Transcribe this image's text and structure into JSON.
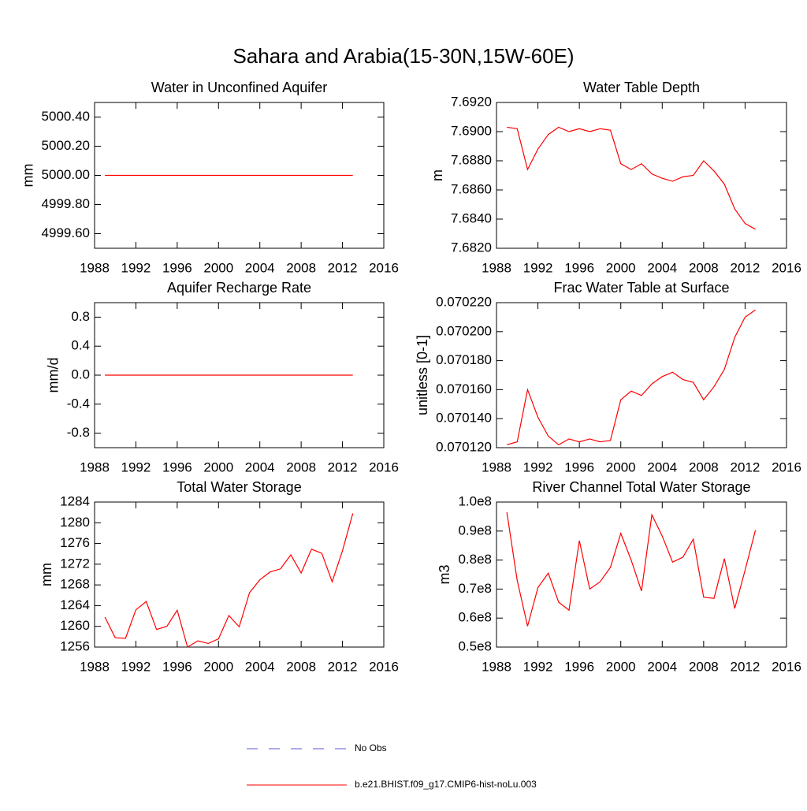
{
  "title": "Sahara and Arabia(15-30N,15W-60E)",
  "legend": [
    {
      "name": "No Obs",
      "color": "#5a5ad8",
      "dash": true
    },
    {
      "name": "b.e21.BHIST.f09_g17.CMIP6-hist-noLu.003",
      "color": "#ff0000",
      "dash": false
    }
  ],
  "chart_data": [
    {
      "type": "line",
      "title": "Water in Unconfined Aquifer",
      "y_label": "mm",
      "x": [
        1989,
        1990,
        1991,
        1992,
        1993,
        1994,
        1995,
        1996,
        1997,
        1998,
        1999,
        2000,
        2001,
        2002,
        2003,
        2004,
        2005,
        2006,
        2007,
        2008,
        2009,
        2010,
        2011,
        2012,
        2013
      ],
      "xlim": [
        1988,
        2016
      ],
      "xticks": [
        1988,
        1992,
        1996,
        2000,
        2004,
        2008,
        2012,
        2016
      ],
      "ylim": [
        4999.5,
        5000.5
      ],
      "yticks": [
        {
          "value": 4999.6,
          "label": "4999.60"
        },
        {
          "value": 4999.8,
          "label": "4999.80"
        },
        {
          "value": 5000,
          "label": "5000.00"
        },
        {
          "value": 5000.2,
          "label": "5000.20"
        },
        {
          "value": 5000.4,
          "label": "5000.40"
        }
      ],
      "series": [
        {
          "color": "#ff0000",
          "values": [
            5000,
            5000,
            5000,
            5000,
            5000,
            5000,
            5000,
            5000,
            5000,
            5000,
            5000,
            5000,
            5000,
            5000,
            5000,
            5000,
            5000,
            5000,
            5000,
            5000,
            5000,
            5000,
            5000,
            5000,
            5000
          ]
        }
      ]
    },
    {
      "type": "line",
      "title": "Water Table Depth",
      "y_label": "m",
      "x": [
        1989,
        1990,
        1991,
        1992,
        1993,
        1994,
        1995,
        1996,
        1997,
        1998,
        1999,
        2000,
        2001,
        2002,
        2003,
        2004,
        2005,
        2006,
        2007,
        2008,
        2009,
        2010,
        2011,
        2012,
        2013
      ],
      "xlim": [
        1988,
        2016
      ],
      "xticks": [
        1988,
        1992,
        1996,
        2000,
        2004,
        2008,
        2012,
        2016
      ],
      "ylim": [
        7.682,
        7.692
      ],
      "yticks": [
        {
          "value": 7.682,
          "label": "7.6820"
        },
        {
          "value": 7.684,
          "label": "7.6840"
        },
        {
          "value": 7.686,
          "label": "7.6860"
        },
        {
          "value": 7.688,
          "label": "7.6880"
        },
        {
          "value": 7.69,
          "label": "7.6900"
        },
        {
          "value": 7.692,
          "label": "7.6920"
        }
      ],
      "series": [
        {
          "color": "#ff0000",
          "values": [
            7.6903,
            7.6902,
            7.6874,
            7.6888,
            7.6898,
            7.6903,
            7.69,
            7.6902,
            7.69,
            7.6902,
            7.6901,
            7.6878,
            7.6874,
            7.6878,
            7.6871,
            7.6868,
            7.6866,
            7.6869,
            7.687,
            7.688,
            7.6873,
            7.6864,
            7.6847,
            7.6837,
            7.6833
          ]
        }
      ]
    },
    {
      "type": "line",
      "title": "Aquifer Recharge Rate",
      "y_label": "mm/d",
      "x": [
        1989,
        1990,
        1991,
        1992,
        1993,
        1994,
        1995,
        1996,
        1997,
        1998,
        1999,
        2000,
        2001,
        2002,
        2003,
        2004,
        2005,
        2006,
        2007,
        2008,
        2009,
        2010,
        2011,
        2012,
        2013
      ],
      "xlim": [
        1988,
        2016
      ],
      "xticks": [
        1988,
        1992,
        1996,
        2000,
        2004,
        2008,
        2012,
        2016
      ],
      "ylim": [
        -1,
        1
      ],
      "yticks": [
        -0.8,
        -0.4,
        {
          "value": 0,
          "label": "0.0"
        },
        0.4,
        0.8
      ],
      "series": [
        {
          "color": "#ff0000",
          "values": [
            0,
            0,
            0,
            0,
            0,
            0,
            0,
            0,
            0,
            0,
            0,
            0,
            0,
            0,
            0,
            0,
            0,
            0,
            0,
            0,
            0,
            0,
            0,
            0,
            0
          ]
        }
      ]
    },
    {
      "type": "line",
      "title": "Frac Water Table at Surface",
      "y_label": "unitless [0-1]",
      "x": [
        1989,
        1990,
        1991,
        1992,
        1993,
        1994,
        1995,
        1996,
        1997,
        1998,
        1999,
        2000,
        2001,
        2002,
        2003,
        2004,
        2005,
        2006,
        2007,
        2008,
        2009,
        2010,
        2011,
        2012,
        2013
      ],
      "xlim": [
        1988,
        2016
      ],
      "xticks": [
        1988,
        1992,
        1996,
        2000,
        2004,
        2008,
        2012,
        2016
      ],
      "ylim": [
        0.07012,
        0.07022
      ],
      "yticks": [
        {
          "value": 0.07012,
          "label": "0.070120"
        },
        {
          "value": 0.07014,
          "label": "0.070140"
        },
        {
          "value": 0.07016,
          "label": "0.070160"
        },
        {
          "value": 0.07018,
          "label": "0.070180"
        },
        {
          "value": 0.0702,
          "label": "0.070200"
        },
        {
          "value": 0.07022,
          "label": "0.070220"
        }
      ],
      "series": [
        {
          "color": "#ff0000",
          "values": [
            0.070122,
            0.070124,
            0.07016,
            0.070141,
            0.070128,
            0.070122,
            0.070126,
            0.070124,
            0.070126,
            0.070124,
            0.070125,
            0.070153,
            0.070159,
            0.070156,
            0.070164,
            0.070169,
            0.070172,
            0.070167,
            0.070165,
            0.070153,
            0.070162,
            0.070174,
            0.070196,
            0.07021,
            0.070215
          ]
        }
      ]
    },
    {
      "type": "line",
      "title": "Total Water Storage",
      "y_label": "mm",
      "x": [
        1989,
        1990,
        1991,
        1992,
        1993,
        1994,
        1995,
        1996,
        1997,
        1998,
        1999,
        2000,
        2001,
        2002,
        2003,
        2004,
        2005,
        2006,
        2007,
        2008,
        2009,
        2010,
        2011,
        2012,
        2013
      ],
      "xlim": [
        1988,
        2016
      ],
      "xticks": [
        1988,
        1992,
        1996,
        2000,
        2004,
        2008,
        2012,
        2016
      ],
      "ylim": [
        1256,
        1284
      ],
      "yticks": [
        1256,
        1260,
        1264,
        1268,
        1272,
        1276,
        1280,
        1284
      ],
      "series": [
        {
          "color": "#ff0000",
          "values": [
            1261.8,
            1257.8,
            1257.7,
            1263.2,
            1264.8,
            1259.4,
            1260.0,
            1263.1,
            1256.0,
            1257.2,
            1256.7,
            1257.6,
            1262.1,
            1259.9,
            1266.5,
            1269.0,
            1270.5,
            1271.1,
            1273.8,
            1270.3,
            1274.9,
            1274.1,
            1268.6,
            1274.6,
            1281.8
          ]
        }
      ]
    },
    {
      "type": "line",
      "title": "River Channel Total Water Storage",
      "y_label": "m3",
      "x": [
        1989,
        1990,
        1991,
        1992,
        1993,
        1994,
        1995,
        1996,
        1997,
        1998,
        1999,
        2000,
        2001,
        2002,
        2003,
        2004,
        2005,
        2006,
        2007,
        2008,
        2009,
        2010,
        2011,
        2012,
        2013
      ],
      "xlim": [
        1988,
        2016
      ],
      "xticks": [
        1988,
        1992,
        1996,
        2000,
        2004,
        2008,
        2012,
        2016
      ],
      "ylim": [
        50000000,
        100000000
      ],
      "yticks": [
        {
          "value": 50000000,
          "label": "0.5e8"
        },
        {
          "value": 60000000,
          "label": "0.6e8"
        },
        {
          "value": 70000000,
          "label": "0.7e8"
        },
        {
          "value": 80000000,
          "label": "0.8e8"
        },
        {
          "value": 90000000,
          "label": "0.9e8"
        },
        {
          "value": 100000000,
          "label": "1.0e8"
        }
      ],
      "series": [
        {
          "color": "#ff0000",
          "values": [
            96500000,
            73000000,
            57200000,
            70500000,
            75500000,
            65500000,
            62700000,
            86700000,
            70000000,
            72500000,
            77500000,
            89200000,
            80000000,
            69300000,
            95600000,
            88300000,
            79300000,
            81000000,
            87200000,
            67200000,
            66800000,
            80500000,
            63300000,
            76500000,
            90300000
          ]
        }
      ]
    }
  ]
}
